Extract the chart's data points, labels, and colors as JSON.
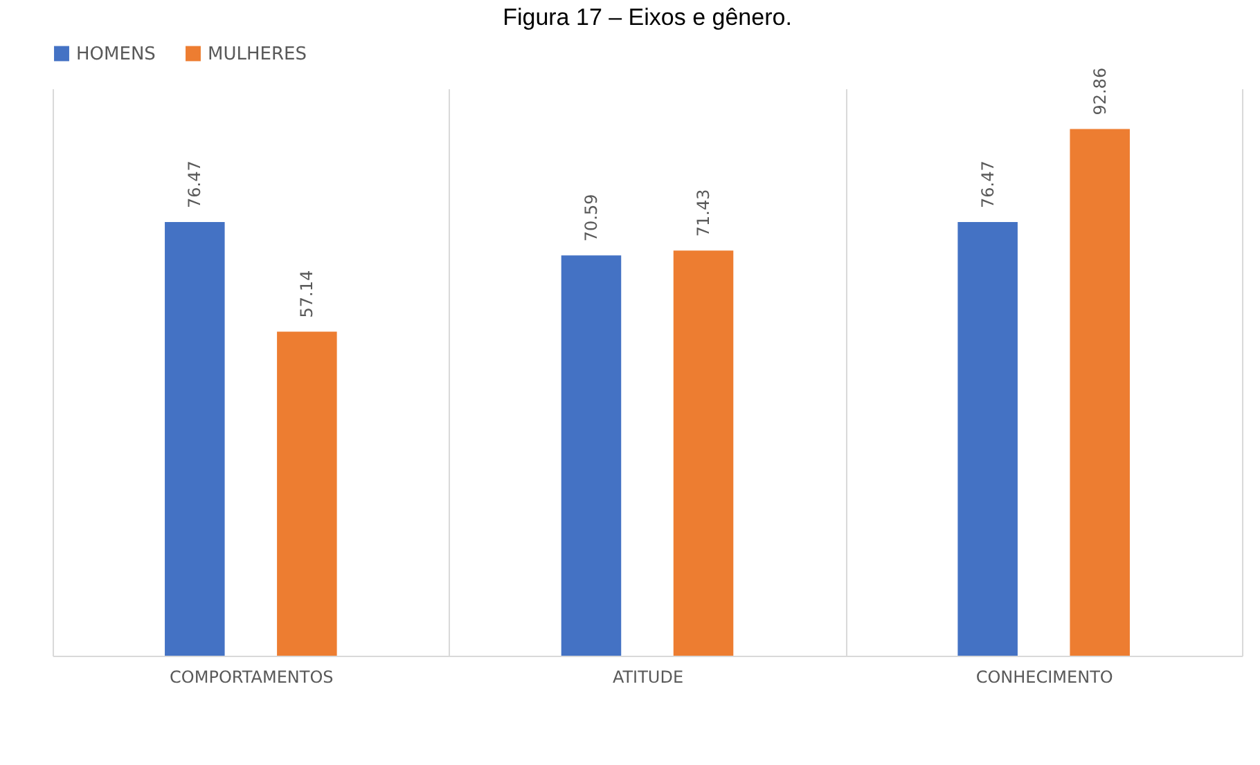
{
  "chart_data": {
    "type": "bar",
    "title": "Figura 17 – Eixos e gênero.",
    "categories": [
      "COMPORTAMENTOS",
      "ATITUDE",
      "CONHECIMENTO"
    ],
    "series": [
      {
        "name": "HOMENS",
        "color": "#4472c4",
        "values": [
          76.47,
          70.59,
          76.47
        ]
      },
      {
        "name": "MULHERES",
        "color": "#ed7d31",
        "values": [
          57.14,
          71.43,
          92.86
        ]
      }
    ],
    "ylim": [
      0,
      100
    ],
    "data_labels": true,
    "grid": "x",
    "legend": "top",
    "tick_labels": "x"
  }
}
